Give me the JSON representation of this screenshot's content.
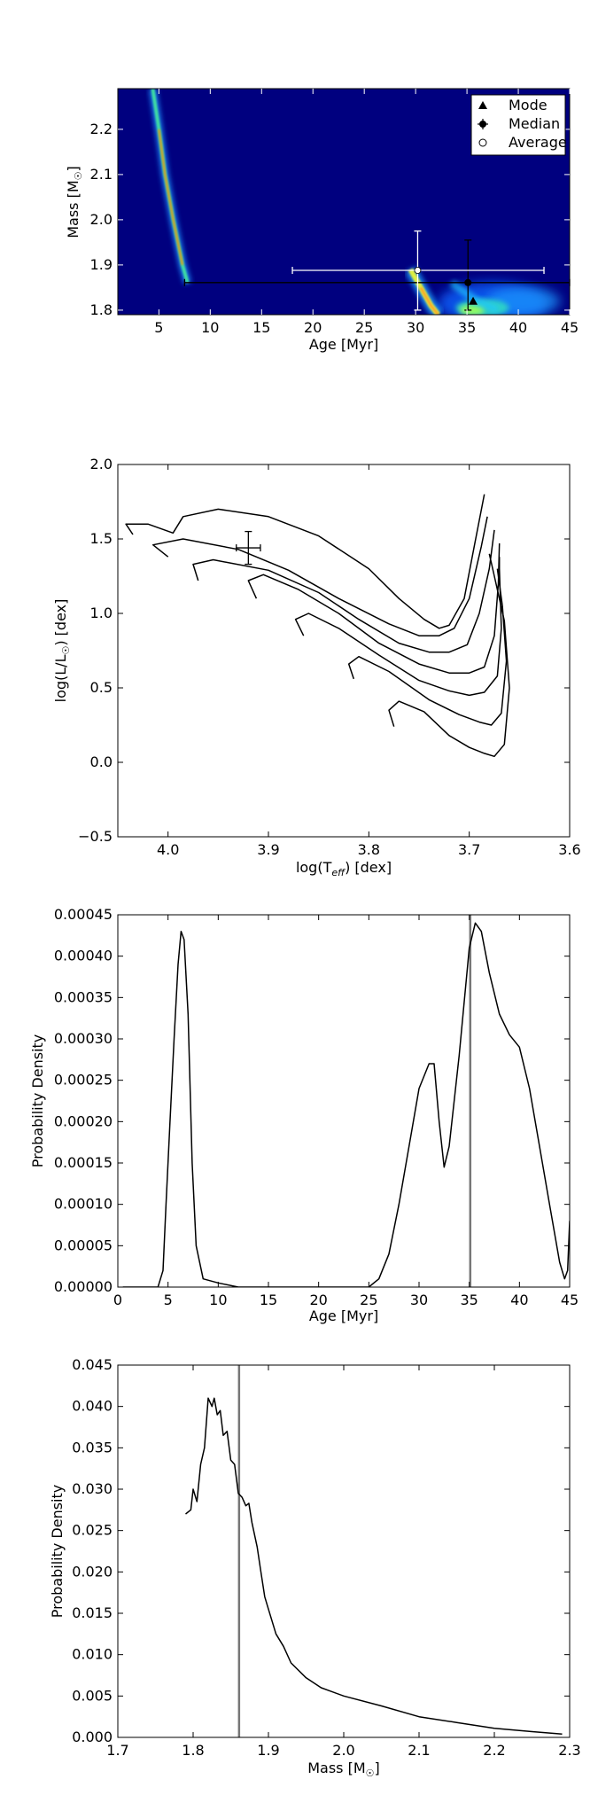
{
  "chart_data": [
    {
      "type": "heatmap",
      "xlabel": "Age [Myr]",
      "ylabel": "Mass [M",
      "ylabel_sub": "☉",
      "ylabel_end": "]",
      "xlim": [
        1,
        45
      ],
      "ylim": [
        1.79,
        2.29
      ],
      "xticks": [
        5,
        10,
        15,
        20,
        25,
        30,
        35,
        40,
        45
      ],
      "yticks": [
        1.8,
        1.9,
        2.0,
        2.1,
        2.2
      ],
      "background_color": "#00007f",
      "colormap": "jet",
      "legend": {
        "placement": "top-right",
        "entries": [
          "Mode",
          "Median",
          "Average"
        ]
      },
      "mode": {
        "x": 35.6,
        "y": 1.82
      },
      "median": {
        "x": 35.1,
        "y": 1.861,
        "xerr": [
          7.5,
          45.0
        ],
        "yerr": [
          1.8,
          1.955
        ]
      },
      "average": {
        "x": 30.2,
        "y": 1.888,
        "xerr": [
          18.0,
          42.5
        ],
        "yerr": [
          1.8,
          1.975
        ]
      },
      "ridges": [
        {
          "points": [
            [
              4.4,
              2.29
            ],
            [
              5.0,
              2.2
            ],
            [
              5.6,
              2.1
            ],
            [
              6.4,
              2.0
            ],
            [
              7.3,
              1.9
            ],
            [
              7.8,
              1.86
            ]
          ]
        },
        {
          "points": [
            [
              29.5,
              1.89
            ],
            [
              30.5,
              1.85
            ],
            [
              31.5,
              1.81
            ],
            [
              32.2,
              1.79
            ]
          ]
        },
        {
          "points": [
            [
              33.5,
              1.86
            ],
            [
              36.0,
              1.82
            ],
            [
              38.0,
              1.8
            ]
          ]
        }
      ]
    },
    {
      "type": "line",
      "xlabel": "log(T",
      "xlabel_sub": "eff",
      "xlabel_end": ") [dex]",
      "ylabel": "log(L/L",
      "ylabel_sub": "☉",
      "ylabel_end": ") [dex]",
      "xlim": [
        4.05,
        3.6
      ],
      "ylim": [
        -0.5,
        2.0
      ],
      "xticks": [
        4.0,
        3.9,
        3.8,
        3.7,
        3.6
      ],
      "yticks": [
        -0.5,
        0.0,
        0.5,
        1.0,
        1.5,
        2.0
      ],
      "data_point": {
        "x": 3.92,
        "y": 1.44,
        "xerr": 0.012,
        "yerr": 0.11
      },
      "series": [
        {
          "points": [
            [
              3.775,
              0.24
            ],
            [
              3.78,
              0.35
            ],
            [
              3.77,
              0.41
            ],
            [
              3.745,
              0.34
            ],
            [
              3.72,
              0.18
            ],
            [
              3.7,
              0.1
            ],
            [
              3.685,
              0.06
            ],
            [
              3.675,
              0.04
            ],
            [
              3.665,
              0.12
            ],
            [
              3.66,
              0.5
            ],
            [
              3.665,
              0.95
            ],
            [
              3.675,
              1.25
            ],
            [
              3.68,
              1.4
            ]
          ]
        },
        {
          "points": [
            [
              3.815,
              0.56
            ],
            [
              3.82,
              0.66
            ],
            [
              3.81,
              0.71
            ],
            [
              3.78,
              0.61
            ],
            [
              3.74,
              0.42
            ],
            [
              3.71,
              0.32
            ],
            [
              3.69,
              0.27
            ],
            [
              3.678,
              0.25
            ],
            [
              3.668,
              0.33
            ],
            [
              3.663,
              0.68
            ],
            [
              3.667,
              1.05
            ],
            [
              3.672,
              1.3
            ]
          ]
        },
        {
          "points": [
            [
              3.865,
              0.85
            ],
            [
              3.873,
              0.96
            ],
            [
              3.86,
              1.0
            ],
            [
              3.83,
              0.9
            ],
            [
              3.79,
              0.72
            ],
            [
              3.75,
              0.55
            ],
            [
              3.72,
              0.48
            ],
            [
              3.7,
              0.45
            ],
            [
              3.685,
              0.47
            ],
            [
              3.672,
              0.58
            ],
            [
              3.668,
              0.9
            ],
            [
              3.67,
              1.3
            ],
            [
              3.67,
              1.38
            ]
          ]
        },
        {
          "points": [
            [
              3.912,
              1.1
            ],
            [
              3.92,
              1.22
            ],
            [
              3.905,
              1.26
            ],
            [
              3.87,
              1.16
            ],
            [
              3.83,
              1.0
            ],
            [
              3.79,
              0.8
            ],
            [
              3.75,
              0.66
            ],
            [
              3.72,
              0.6
            ],
            [
              3.7,
              0.6
            ],
            [
              3.685,
              0.64
            ],
            [
              3.675,
              0.85
            ],
            [
              3.671,
              1.2
            ],
            [
              3.67,
              1.47
            ]
          ]
        },
        {
          "points": [
            [
              3.97,
              1.22
            ],
            [
              3.975,
              1.33
            ],
            [
              3.955,
              1.36
            ],
            [
              3.9,
              1.29
            ],
            [
              3.85,
              1.14
            ],
            [
              3.81,
              0.96
            ],
            [
              3.77,
              0.8
            ],
            [
              3.74,
              0.74
            ],
            [
              3.72,
              0.74
            ],
            [
              3.702,
              0.79
            ],
            [
              3.69,
              1.0
            ],
            [
              3.68,
              1.3
            ],
            [
              3.675,
              1.56
            ]
          ]
        },
        {
          "points": [
            [
              4.0,
              1.38
            ],
            [
              4.015,
              1.46
            ],
            [
              3.985,
              1.5
            ],
            [
              3.93,
              1.43
            ],
            [
              3.88,
              1.29
            ],
            [
              3.83,
              1.1
            ],
            [
              3.78,
              0.93
            ],
            [
              3.75,
              0.85
            ],
            [
              3.73,
              0.85
            ],
            [
              3.715,
              0.9
            ],
            [
              3.7,
              1.1
            ],
            [
              3.688,
              1.45
            ],
            [
              3.682,
              1.65
            ]
          ]
        },
        {
          "points": [
            [
              4.035,
              1.53
            ],
            [
              4.042,
              1.6
            ],
            [
              4.02,
              1.6
            ],
            [
              3.995,
              1.54
            ],
            [
              3.985,
              1.65
            ],
            [
              3.95,
              1.7
            ],
            [
              3.9,
              1.65
            ],
            [
              3.85,
              1.52
            ],
            [
              3.8,
              1.3
            ],
            [
              3.77,
              1.1
            ],
            [
              3.745,
              0.96
            ],
            [
              3.73,
              0.9
            ],
            [
              3.72,
              0.92
            ],
            [
              3.705,
              1.1
            ],
            [
              3.695,
              1.45
            ],
            [
              3.685,
              1.8
            ]
          ]
        }
      ]
    },
    {
      "type": "line",
      "xlabel": "Age [Myr]",
      "ylabel": "Probability Density",
      "xlim": [
        0,
        45
      ],
      "ylim": [
        0,
        0.00045
      ],
      "xticks": [
        0,
        5,
        10,
        15,
        20,
        25,
        30,
        35,
        40,
        45
      ],
      "yticks": [
        0.0,
        5e-05,
        0.0001,
        0.00015,
        0.0002,
        0.00025,
        0.0003,
        0.00035,
        0.0004,
        0.00045
      ],
      "ytick_labels": [
        "0.00000",
        "0.00005",
        "0.00010",
        "0.00015",
        "0.00020",
        "0.00025",
        "0.00030",
        "0.00035",
        "0.00040",
        "0.00045"
      ],
      "vline": 35.1,
      "points": [
        [
          0.5,
          0.0
        ],
        [
          4.0,
          0.0
        ],
        [
          4.5,
          2e-05
        ],
        [
          4.8,
          0.0001
        ],
        [
          5.2,
          0.0002
        ],
        [
          5.6,
          0.0003
        ],
        [
          6.0,
          0.00039
        ],
        [
          6.3,
          0.00043
        ],
        [
          6.6,
          0.00042
        ],
        [
          7.0,
          0.00033
        ],
        [
          7.4,
          0.00015
        ],
        [
          7.8,
          5e-05
        ],
        [
          8.5,
          1e-05
        ],
        [
          10.0,
          5e-06
        ],
        [
          12.0,
          0.0
        ],
        [
          25.0,
          0.0
        ],
        [
          26.0,
          1e-05
        ],
        [
          27.0,
          4e-05
        ],
        [
          28.0,
          0.0001
        ],
        [
          29.0,
          0.00017
        ],
        [
          30.0,
          0.00024
        ],
        [
          31.0,
          0.00027
        ],
        [
          31.5,
          0.00027
        ],
        [
          32.0,
          0.0002
        ],
        [
          32.5,
          0.000145
        ],
        [
          33.0,
          0.00017
        ],
        [
          34.0,
          0.00028
        ],
        [
          35.0,
          0.00041
        ],
        [
          35.6,
          0.00044
        ],
        [
          36.2,
          0.00043
        ],
        [
          37.0,
          0.00038
        ],
        [
          38.0,
          0.00033
        ],
        [
          39.0,
          0.000305
        ],
        [
          40.0,
          0.00029
        ],
        [
          41.0,
          0.00024
        ],
        [
          42.0,
          0.00017
        ],
        [
          43.0,
          0.0001
        ],
        [
          44.0,
          3e-05
        ],
        [
          44.5,
          1e-05
        ],
        [
          44.8,
          2e-05
        ],
        [
          45.0,
          8e-05
        ]
      ]
    },
    {
      "type": "line",
      "xlabel": "Mass [M",
      "xlabel_sub": "☉",
      "xlabel_end": "]",
      "ylabel": "Probability Density",
      "xlim": [
        1.7,
        2.3
      ],
      "ylim": [
        0,
        0.045
      ],
      "xticks": [
        1.7,
        1.8,
        1.9,
        2.0,
        2.1,
        2.2,
        2.3
      ],
      "yticks": [
        0.0,
        0.005,
        0.01,
        0.015,
        0.02,
        0.025,
        0.03,
        0.035,
        0.04,
        0.045
      ],
      "ytick_labels": [
        "0.000",
        "0.005",
        "0.010",
        "0.015",
        "0.020",
        "0.025",
        "0.030",
        "0.035",
        "0.040",
        "0.045"
      ],
      "vline": 1.861,
      "points": [
        [
          1.79,
          0.027
        ],
        [
          1.797,
          0.0275
        ],
        [
          1.8,
          0.03
        ],
        [
          1.805,
          0.0285
        ],
        [
          1.81,
          0.033
        ],
        [
          1.815,
          0.035
        ],
        [
          1.82,
          0.041
        ],
        [
          1.825,
          0.04
        ],
        [
          1.828,
          0.041
        ],
        [
          1.832,
          0.039
        ],
        [
          1.836,
          0.0395
        ],
        [
          1.84,
          0.0365
        ],
        [
          1.845,
          0.037
        ],
        [
          1.85,
          0.0335
        ],
        [
          1.855,
          0.033
        ],
        [
          1.86,
          0.0295
        ],
        [
          1.865,
          0.029
        ],
        [
          1.87,
          0.028
        ],
        [
          1.874,
          0.0283
        ],
        [
          1.878,
          0.026
        ],
        [
          1.885,
          0.023
        ],
        [
          1.89,
          0.02
        ],
        [
          1.895,
          0.017
        ],
        [
          1.9,
          0.0155
        ],
        [
          1.91,
          0.0125
        ],
        [
          1.92,
          0.011
        ],
        [
          1.93,
          0.009
        ],
        [
          1.95,
          0.0072
        ],
        [
          1.97,
          0.006
        ],
        [
          2.0,
          0.005
        ],
        [
          2.05,
          0.0038
        ],
        [
          2.1,
          0.0025
        ],
        [
          2.15,
          0.0018
        ],
        [
          2.2,
          0.0011
        ],
        [
          2.25,
          0.0007
        ],
        [
          2.29,
          0.0004
        ]
      ]
    }
  ]
}
